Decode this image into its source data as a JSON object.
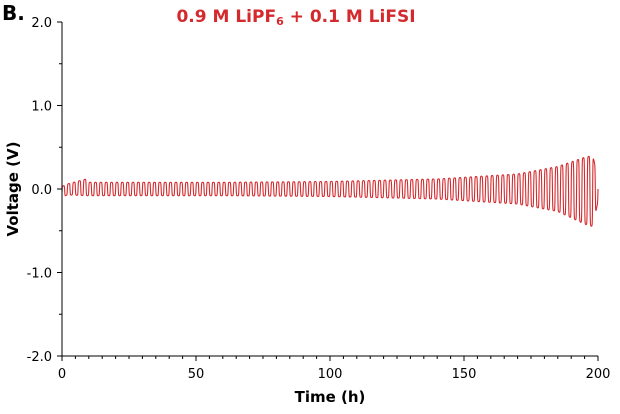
{
  "panel_label": "B.",
  "colors": {
    "series": "#d42a2e",
    "title": "#d42a2e",
    "axis": "#000000"
  },
  "chart_data": {
    "type": "line",
    "title": {
      "prefix": "0.9 M LiPF",
      "subscript": "6",
      "suffix": " + 0.1 M LiFSI"
    },
    "xlabel": "Time (h)",
    "ylabel": "Voltage (V)",
    "xlim": [
      0,
      200
    ],
    "ylim": [
      -2.0,
      2.0
    ],
    "x_ticks": [
      "0",
      "50",
      "100",
      "150",
      "200"
    ],
    "y_ticks": [
      "-2.0",
      "-1.0",
      "0.0",
      "1.0",
      "2.0"
    ],
    "grid": false,
    "legend": "none",
    "series": [
      {
        "cycle_period_h": 2,
        "time_range_h": [
          0,
          200
        ],
        "envelope": [
          {
            "t": 0,
            "upper": 0.03,
            "lower": -0.1
          },
          {
            "t": 2,
            "upper": 0.06,
            "lower": -0.07
          },
          {
            "t": 9,
            "upper": 0.12,
            "lower": -0.08
          },
          {
            "t": 10,
            "upper": 0.08,
            "lower": -0.08
          },
          {
            "t": 60,
            "upper": 0.08,
            "lower": -0.08
          },
          {
            "t": 100,
            "upper": 0.09,
            "lower": -0.09
          },
          {
            "t": 140,
            "upper": 0.12,
            "lower": -0.12
          },
          {
            "t": 170,
            "upper": 0.18,
            "lower": -0.18
          },
          {
            "t": 185,
            "upper": 0.27,
            "lower": -0.27
          },
          {
            "t": 195,
            "upper": 0.38,
            "lower": -0.42
          },
          {
            "t": 198,
            "upper": 0.4,
            "lower": -0.45
          },
          {
            "t": 200,
            "upper": 0.15,
            "lower": -0.15
          }
        ]
      }
    ]
  }
}
